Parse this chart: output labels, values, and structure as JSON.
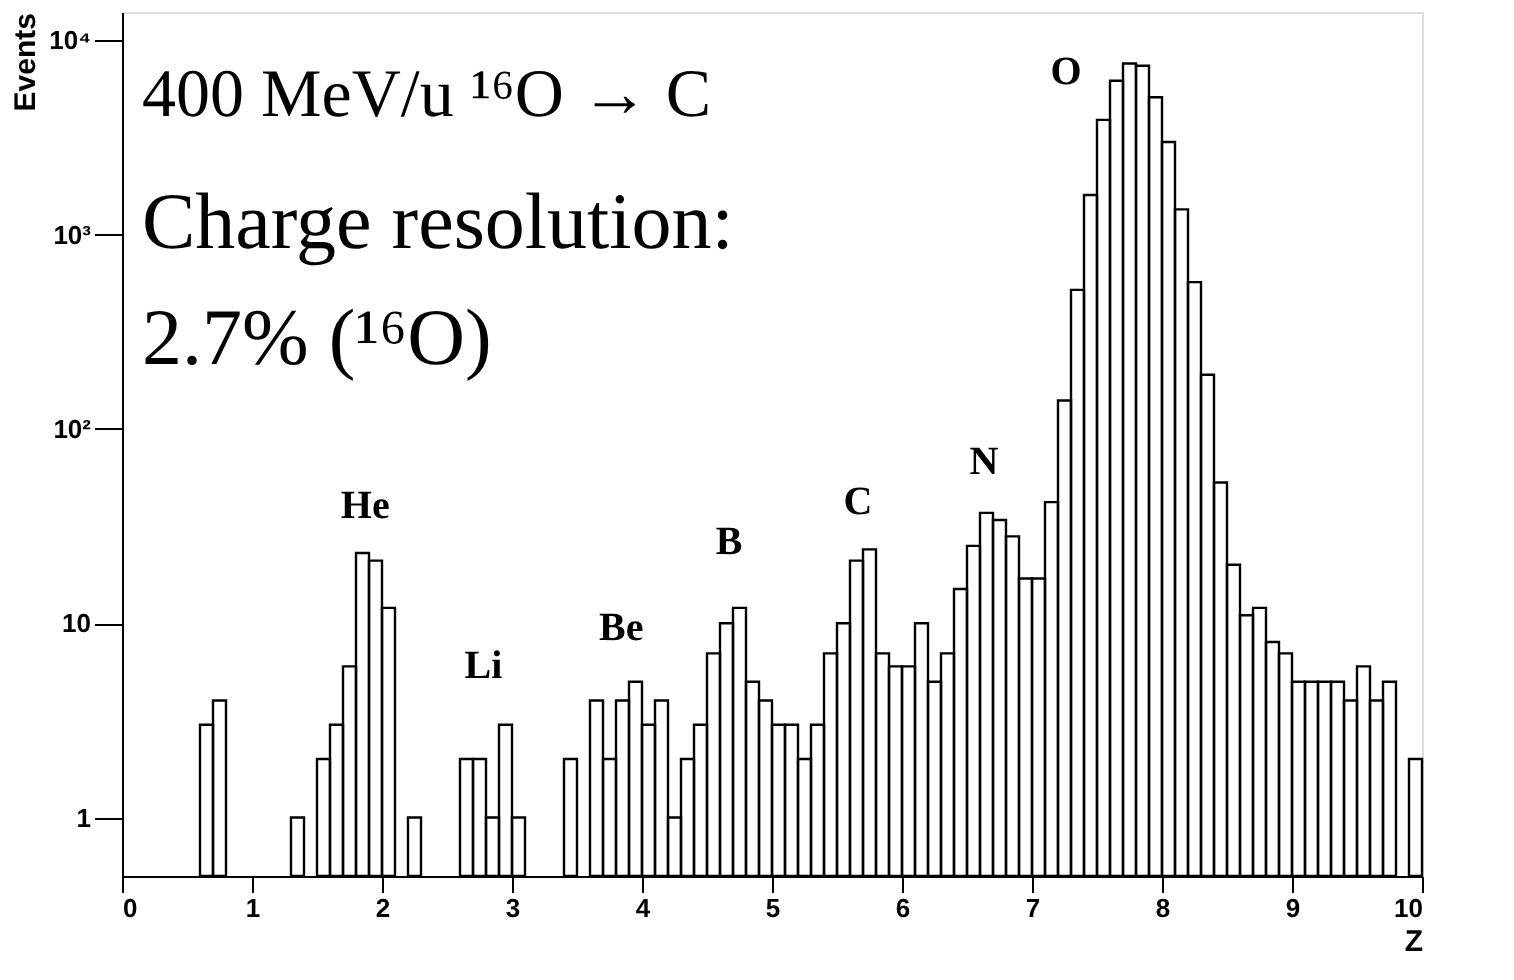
{
  "chart_data": {
    "type": "histogram",
    "xlabel": "Z",
    "ylabel": "Events",
    "bins": [
      0,
      0.1,
      0.2,
      0.3,
      0.4,
      0.5,
      0.6,
      0.7,
      0.8,
      0.9,
      1.0,
      1.1,
      1.2,
      1.3,
      1.4,
      1.5,
      1.6,
      1.7,
      1.8,
      1.9,
      2.0,
      2.1,
      2.2,
      2.3,
      2.4,
      2.5,
      2.6,
      2.7,
      2.8,
      2.9,
      3.0,
      3.1,
      3.2,
      3.3,
      3.4,
      3.5,
      3.6,
      3.7,
      3.8,
      3.9,
      4.0,
      4.1,
      4.2,
      4.3,
      4.4,
      4.5,
      4.6,
      4.7,
      4.8,
      4.9,
      5.0,
      5.1,
      5.2,
      5.3,
      5.4,
      5.5,
      5.6,
      5.7,
      5.8,
      5.9,
      6.0,
      6.1,
      6.2,
      6.3,
      6.4,
      6.5,
      6.6,
      6.7,
      6.8,
      6.9,
      7.0,
      7.1,
      7.2,
      7.3,
      7.4,
      7.5,
      7.6,
      7.7,
      7.8,
      7.9,
      8.0,
      8.1,
      8.2,
      8.3,
      8.4,
      8.5,
      8.6,
      8.7,
      8.8,
      8.9,
      9.0,
      9.1,
      9.2,
      9.3,
      9.4,
      9.5,
      9.6,
      9.7,
      9.8,
      9.9,
      10.0
    ],
    "values": [
      null,
      null,
      null,
      null,
      null,
      null,
      3,
      4,
      null,
      null,
      null,
      null,
      null,
      1,
      null,
      2,
      3,
      6,
      23,
      21,
      12,
      null,
      1,
      null,
      null,
      null,
      2,
      2,
      1,
      3,
      1,
      null,
      null,
      null,
      2,
      null,
      4,
      2,
      4,
      5,
      3,
      4,
      1,
      2,
      3,
      7,
      10,
      12,
      5,
      4,
      3,
      3,
      2,
      3,
      7,
      10,
      21,
      24,
      7,
      6,
      6,
      10,
      5,
      7,
      15,
      25,
      37,
      34,
      28,
      17,
      17,
      42,
      140,
      520,
      1600,
      3900,
      6200,
      7600,
      7400,
      5100,
      3000,
      1350,
      570,
      190,
      53,
      20,
      11,
      12,
      8,
      7,
      5,
      5,
      5,
      5,
      4,
      6,
      4,
      5,
      null,
      2
    ],
    "color": "#000000",
    "log": "y",
    "xlim": [
      0,
      10
    ],
    "xticks": [
      0,
      1,
      2,
      3,
      4,
      5,
      6,
      7,
      8,
      9,
      10
    ],
    "ylim": [
      0.5,
      14000
    ],
    "yticks": [
      1,
      10,
      {
        "value": 100,
        "label": "10²"
      },
      {
        "value": 1000,
        "label": "10³"
      },
      {
        "value": 10000,
        "label": "10⁴"
      }
    ],
    "grid": false,
    "annotations": [
      "400 MeV/u ¹⁶O → C",
      "Charge resolution:",
      "2.7% (¹⁶O)",
      "He",
      "Li",
      "Be",
      "B",
      "C",
      "N",
      "O"
    ]
  }
}
